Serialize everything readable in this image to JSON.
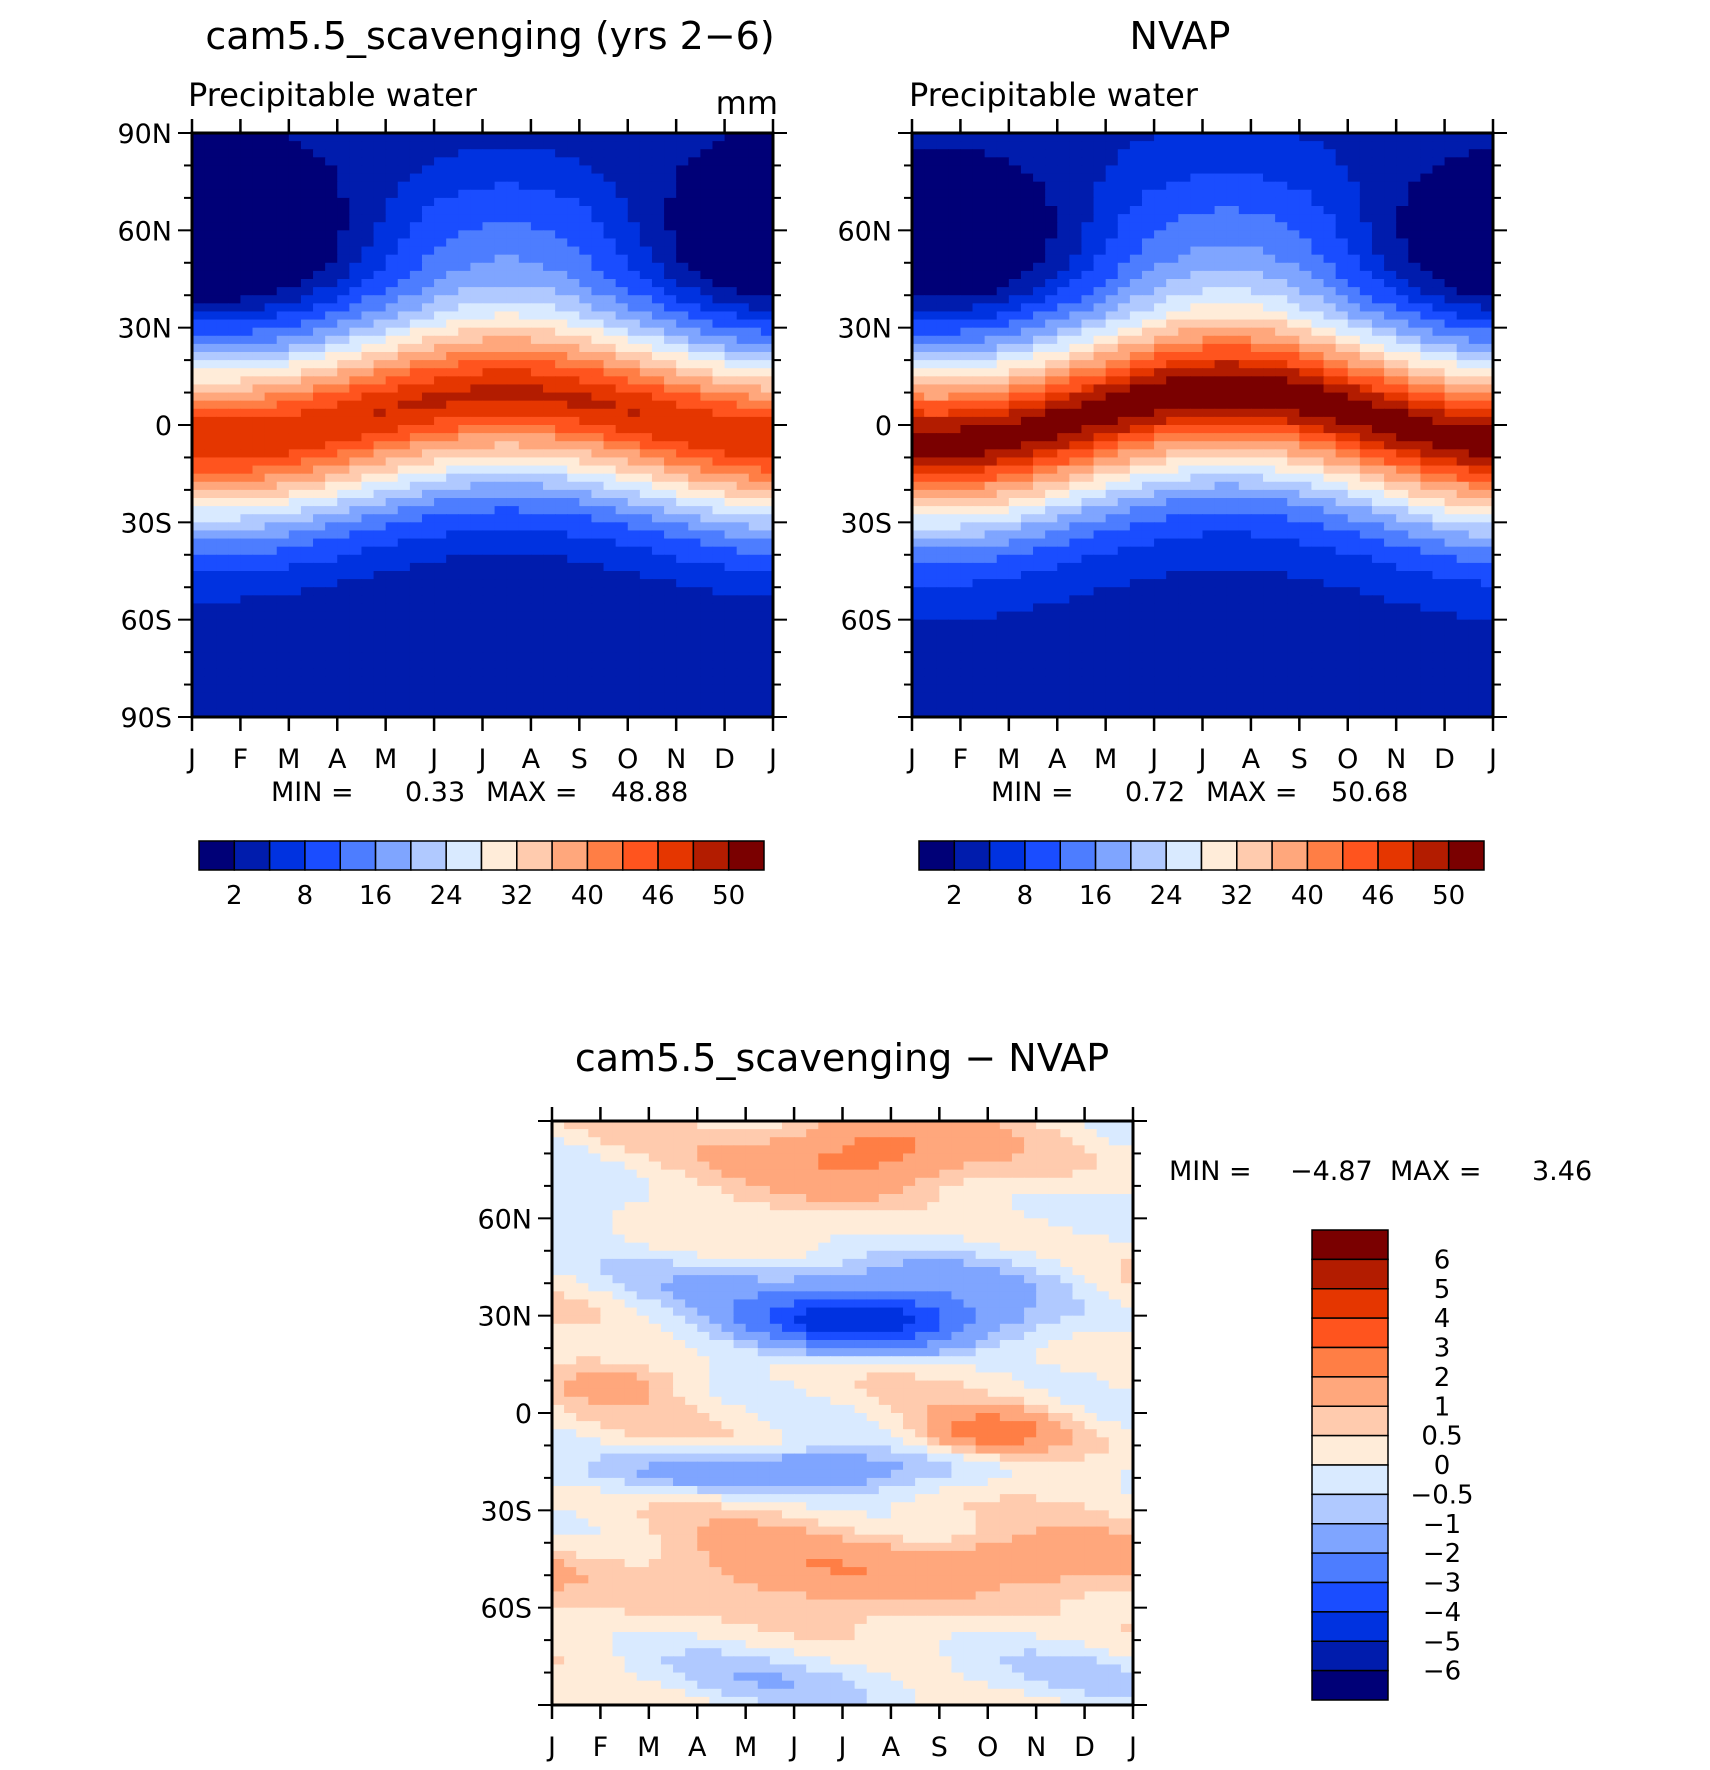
{
  "chart_data": [
    {
      "type": "heatmap",
      "title": "cam5.5_scavenging (yrs 2−6)",
      "subtitle": "Precipitable water",
      "units": "mm",
      "x_tick_labels": [
        "J",
        "F",
        "M",
        "A",
        "M",
        "J",
        "J",
        "A",
        "S",
        "O",
        "N",
        "D",
        "J"
      ],
      "y_tick_labels": [
        "90N",
        "60N",
        "30N",
        "0",
        "30S",
        "60S",
        "90S"
      ],
      "ylim": [
        -90,
        90
      ],
      "stats": {
        "min_label": "MIN =",
        "min_value": "0.33",
        "max_label": "MAX =",
        "max_value": "48.88"
      },
      "colorbar_labels": [
        "2",
        "8",
        "16",
        "24",
        "32",
        "40",
        "46",
        "50"
      ],
      "colorbar_levels": [
        2,
        5,
        8,
        12,
        16,
        20,
        24,
        28,
        32,
        36,
        40,
        43,
        46,
        48,
        50
      ],
      "colorbar_colors": [
        "#000077",
        "#001cad",
        "#0032e0",
        "#1a4dff",
        "#4d7dff",
        "#7fa5ff",
        "#b0c9ff",
        "#d9eaff",
        "#ffecd9",
        "#ffcbae",
        "#ffa77c",
        "#ff7e45",
        "#ff541e",
        "#e53600",
        "#b31c00",
        "#7a0000"
      ],
      "field": {
        "peak_lat": 8,
        "seasonal_shift": 7,
        "eq_value": 45,
        "mid_value": 24,
        "high_value": 3
      }
    },
    {
      "type": "heatmap",
      "title": "NVAP",
      "subtitle": "Precipitable water",
      "units": "",
      "x_tick_labels": [
        "J",
        "F",
        "M",
        "A",
        "M",
        "J",
        "J",
        "A",
        "S",
        "O",
        "N",
        "D",
        "J"
      ],
      "y_tick_labels": [
        "60N",
        "30N",
        "0",
        "30S",
        "60S"
      ],
      "ylim": [
        -90,
        90
      ],
      "stats": {
        "min_label": "MIN =",
        "min_value": "0.72",
        "max_label": "MAX =",
        "max_value": "50.68"
      },
      "colorbar_labels": [
        "2",
        "8",
        "16",
        "24",
        "32",
        "40",
        "46",
        "50"
      ],
      "colorbar_levels": [
        2,
        5,
        8,
        12,
        16,
        20,
        24,
        28,
        32,
        36,
        40,
        43,
        46,
        48,
        50
      ],
      "colorbar_colors": [
        "#000077",
        "#001cad",
        "#0032e0",
        "#1a4dff",
        "#4d7dff",
        "#7fa5ff",
        "#b0c9ff",
        "#d9eaff",
        "#ffecd9",
        "#ffcbae",
        "#ffa77c",
        "#ff7e45",
        "#ff541e",
        "#e53600",
        "#b31c00",
        "#7a0000"
      ],
      "field": {
        "peak_lat": 8,
        "seasonal_shift": 8,
        "eq_value": 47,
        "mid_value": 25,
        "high_value": 4
      }
    },
    {
      "type": "heatmap",
      "title": "cam5.5_scavenging − NVAP",
      "x_tick_labels": [
        "J",
        "F",
        "M",
        "A",
        "M",
        "J",
        "J",
        "A",
        "S",
        "O",
        "N",
        "D",
        "J"
      ],
      "y_tick_labels": [
        "60N",
        "30N",
        "0",
        "30S",
        "60S"
      ],
      "ylim": [
        -90,
        90
      ],
      "stats": {
        "min_label": "MIN =",
        "min_value": "−4.87",
        "max_label": "MAX =",
        "max_value": "3.46"
      },
      "colorbar_labels": [
        "6",
        "5",
        "4",
        "3",
        "2",
        "1",
        "0.5",
        "0",
        "−0.5",
        "−1",
        "−2",
        "−3",
        "−4",
        "−5",
        "−6"
      ],
      "colorbar_levels": [
        -6,
        -5,
        -4,
        -3,
        -2,
        -1,
        -0.5,
        0,
        0.5,
        1,
        2,
        3,
        4,
        5,
        6
      ],
      "colorbar_colors": [
        "#000077",
        "#001cad",
        "#0032e0",
        "#1a4dff",
        "#4d7dff",
        "#7fa5ff",
        "#b0c9ff",
        "#d9eaff",
        "#ffecd9",
        "#ffcbae",
        "#ffa77c",
        "#ff7e45",
        "#ff541e",
        "#e53600",
        "#b31c00",
        "#7a0000"
      ],
      "field": {
        "features": [
          {
            "lat": 80,
            "month": 6.5,
            "amp": 2.5,
            "lat_w": 12,
            "mon_w": 2.0
          },
          {
            "lat": 28,
            "month": 6.5,
            "amp": -5.0,
            "lat_w": 9,
            "mon_w": 2.5
          },
          {
            "lat": 40,
            "month": 6.0,
            "amp": -1.5,
            "lat_w": 10,
            "mon_w": 4.0
          },
          {
            "lat": -6,
            "month": 9.0,
            "amp": 2.2,
            "lat_w": 6,
            "mon_w": 1.3
          },
          {
            "lat": -18,
            "month": 4.5,
            "amp": -2.2,
            "lat_w": 7,
            "mon_w": 3.5
          },
          {
            "lat": 10,
            "month": 1.5,
            "amp": 0.8,
            "lat_w": 6,
            "mon_w": 1.2
          },
          {
            "lat": -48,
            "month": 6.0,
            "amp": 1.2,
            "lat_w": 12,
            "mon_w": 6.0
          },
          {
            "lat": -46,
            "month": 9.5,
            "amp": 1.2,
            "lat_w": 6,
            "mon_w": 1.8
          },
          {
            "lat": -82,
            "month": 6.0,
            "amp": -0.8,
            "lat_w": 10,
            "mon_w": 8.0
          },
          {
            "lat": 62,
            "month": 11.5,
            "amp": -0.7,
            "lat_w": 14,
            "mon_w": 1.8
          }
        ],
        "base": 0.3
      }
    }
  ]
}
